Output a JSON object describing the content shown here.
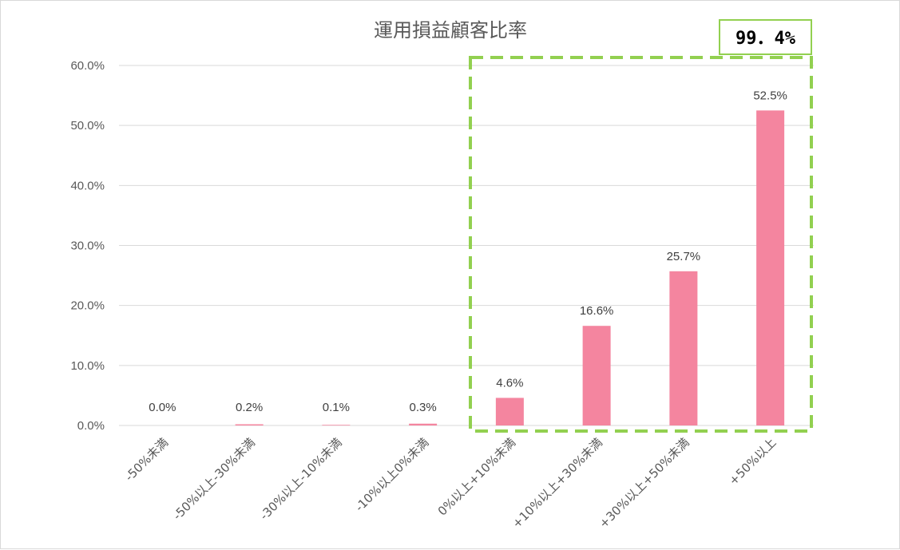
{
  "chart_data": {
    "type": "bar",
    "title": "運用損益顧客比率",
    "xlabel": "",
    "ylabel": "",
    "categories": [
      "-50%未満",
      "-50%以上-30%未満",
      "-30%以上-10%未満",
      "-10%以上0%未満",
      "0%以上+10%未満",
      "+10%以上+30%未満",
      "+30%以上+50%未満",
      "+50%以上"
    ],
    "values": [
      0.0,
      0.2,
      0.1,
      0.3,
      4.6,
      16.6,
      25.7,
      52.5
    ],
    "data_labels": [
      "0.0%",
      "0.2%",
      "0.1%",
      "0.3%",
      "4.6%",
      "16.6%",
      "25.7%",
      "52.5%"
    ],
    "ylim": [
      0,
      60
    ],
    "yticks": [
      0,
      10,
      20,
      30,
      40,
      50,
      60
    ],
    "ytick_labels": [
      "0.0%",
      "10.0%",
      "20.0%",
      "30.0%",
      "40.0%",
      "50.0%",
      "60.0%"
    ],
    "grid": true,
    "legend": "none",
    "highlight": {
      "categories": [
        "0%以上+10%未満",
        "+10%以上+30%未満",
        "+30%以上+50%未満",
        "+50%以上"
      ],
      "label": "99．4%"
    }
  },
  "colors": {
    "bar": "#f4859f",
    "highlight_border": "#92d050",
    "gridline": "#d9d9d9",
    "text": "#595959"
  }
}
